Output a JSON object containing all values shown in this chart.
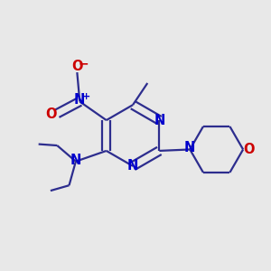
{
  "bg_color": "#e8e8e8",
  "bond_color": "#2d2d8e",
  "N_color": "#0000cc",
  "O_color": "#cc0000",
  "line_width": 1.6,
  "font_size": 10.5,
  "figsize": [
    3.0,
    3.0
  ],
  "dpi": 100,
  "xlim": [
    0.0,
    1.0
  ],
  "ylim": [
    0.0,
    1.0
  ]
}
